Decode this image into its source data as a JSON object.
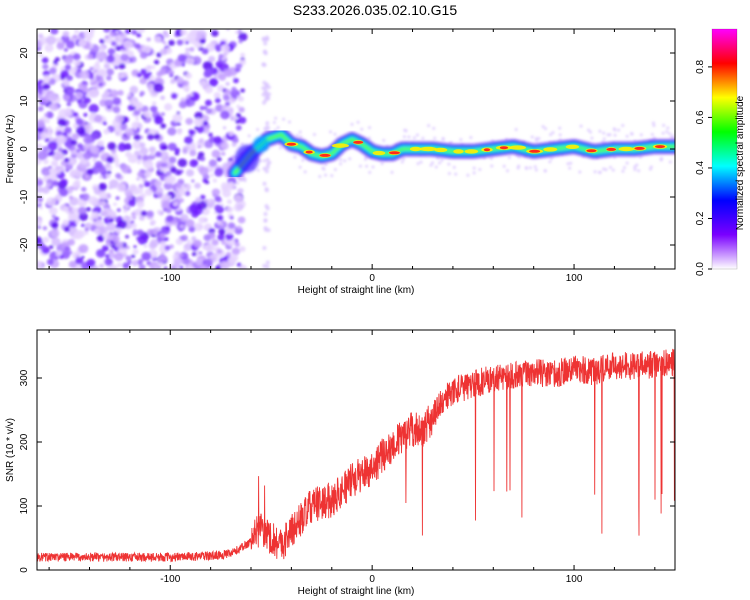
{
  "title": "S233.2026.035.02.10.G15",
  "chart_data": [
    {
      "type": "heatmap",
      "name": "spectrogram",
      "xlabel": "Height of straight line (km)",
      "ylabel": "Frequency (Hz)",
      "xlim": [
        -166,
        150
      ],
      "ylim": [
        -25,
        25
      ],
      "xticks": [
        -100,
        0,
        100
      ],
      "yticks": [
        -20,
        -10,
        0,
        10,
        20
      ],
      "colorbar": {
        "label": "Normalized spectral amplitude",
        "range": [
          0.0,
          0.95
        ],
        "ticks": [
          0.0,
          0.2,
          0.4,
          0.6,
          0.8
        ],
        "tick_labels": [
          "0.0",
          "0.2",
          "0.4",
          "0.6",
          "0.8"
        ],
        "colormap": [
          "#ffffff",
          "#7a00ff",
          "#0000ff",
          "#00ffff",
          "#00ff00",
          "#ffff00",
          "#ff0000",
          "#ff00ff"
        ]
      },
      "noise_region_end_km": -68,
      "signal_track": {
        "x": [
          -68,
          -60,
          -52,
          -45,
          -40,
          -35,
          -30,
          -25,
          -20,
          -15,
          -10,
          -5,
          0,
          5,
          10,
          15,
          20,
          30,
          40,
          50,
          60,
          70,
          80,
          90,
          100,
          110,
          120,
          130,
          140,
          150
        ],
        "freq": [
          -5,
          -1,
          2,
          3,
          1,
          0.5,
          -1,
          -1.5,
          -1,
          1,
          2,
          1,
          -0.5,
          -1,
          -1,
          0,
          0,
          0,
          -0.5,
          -0.5,
          0,
          0.5,
          -0.5,
          0,
          0.5,
          -0.5,
          0,
          0,
          0.5,
          0.5
        ]
      }
    },
    {
      "type": "line",
      "name": "snr",
      "xlabel": "Height of straight line (km)",
      "ylabel": "SNR (10 * v/v)",
      "xlim": [
        -166,
        150
      ],
      "ylim": [
        0,
        375
      ],
      "xticks": [
        -100,
        0,
        100
      ],
      "yticks": [
        0,
        100,
        200,
        300
      ],
      "color": "#ee3333",
      "series": [
        {
          "name": "SNR",
          "x": [
            -166,
            -140,
            -120,
            -100,
            -80,
            -70,
            -62,
            -55,
            -50,
            -45,
            -40,
            -35,
            -30,
            -25,
            -20,
            -10,
            0,
            10,
            20,
            25,
            30,
            35,
            40,
            50,
            60,
            70,
            80,
            90,
            100,
            110,
            120,
            130,
            140,
            150
          ],
          "y": [
            20,
            20,
            20,
            20,
            22,
            25,
            40,
            65,
            50,
            40,
            60,
            80,
            100,
            105,
            110,
            140,
            160,
            195,
            220,
            215,
            240,
            265,
            280,
            290,
            300,
            305,
            310,
            305,
            315,
            310,
            320,
            318,
            322,
            325
          ]
        }
      ]
    }
  ]
}
